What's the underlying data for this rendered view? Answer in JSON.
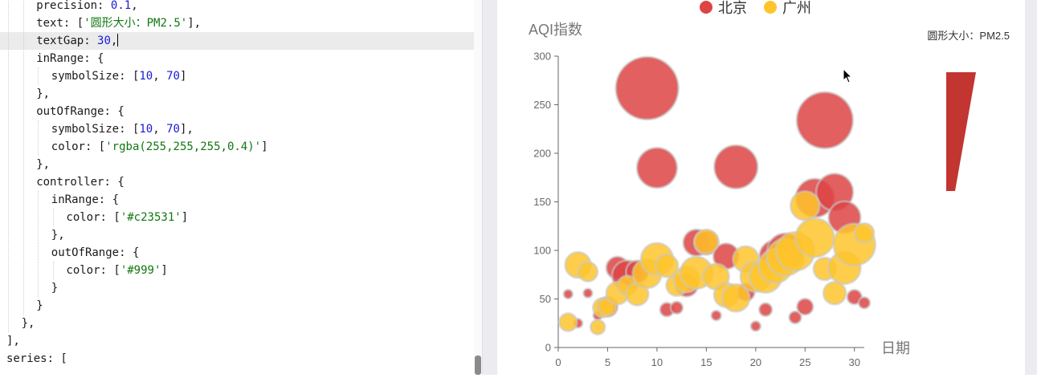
{
  "editor": {
    "lines": [
      {
        "indent": 2,
        "tokens": [
          {
            "t": "precision: "
          },
          {
            "t": "0.1",
            "c": "num"
          },
          {
            "t": ","
          }
        ]
      },
      {
        "indent": 2,
        "tokens": [
          {
            "t": "text: ["
          },
          {
            "t": "'圆形大小：PM2.5'",
            "c": "str"
          },
          {
            "t": "],"
          }
        ]
      },
      {
        "indent": 2,
        "active": true,
        "tokens": [
          {
            "t": "textGap: "
          },
          {
            "t": "30",
            "c": "num"
          },
          {
            "t": ","
          }
        ]
      },
      {
        "indent": 2,
        "tokens": [
          {
            "t": "inRange: {"
          }
        ]
      },
      {
        "indent": 3,
        "tokens": [
          {
            "t": "symbolSize: ["
          },
          {
            "t": "10",
            "c": "num"
          },
          {
            "t": ", "
          },
          {
            "t": "70",
            "c": "num"
          },
          {
            "t": "]"
          }
        ]
      },
      {
        "indent": 2,
        "tokens": [
          {
            "t": "},"
          }
        ]
      },
      {
        "indent": 2,
        "tokens": [
          {
            "t": "outOfRange: {"
          }
        ]
      },
      {
        "indent": 3,
        "tokens": [
          {
            "t": "symbolSize: ["
          },
          {
            "t": "10",
            "c": "num"
          },
          {
            "t": ", "
          },
          {
            "t": "70",
            "c": "num"
          },
          {
            "t": "],"
          }
        ]
      },
      {
        "indent": 3,
        "tokens": [
          {
            "t": "color: ["
          },
          {
            "t": "'rgba(255,255,255,0.4)'",
            "c": "str"
          },
          {
            "t": "]"
          }
        ]
      },
      {
        "indent": 2,
        "tokens": [
          {
            "t": "},"
          }
        ]
      },
      {
        "indent": 2,
        "tokens": [
          {
            "t": "controller: {"
          }
        ]
      },
      {
        "indent": 3,
        "tokens": [
          {
            "t": "inRange: {"
          }
        ]
      },
      {
        "indent": 4,
        "tokens": [
          {
            "t": "color: ["
          },
          {
            "t": "'#c23531'",
            "c": "str"
          },
          {
            "t": "]"
          }
        ]
      },
      {
        "indent": 3,
        "tokens": [
          {
            "t": "},"
          }
        ]
      },
      {
        "indent": 3,
        "tokens": [
          {
            "t": "outOfRange: {"
          }
        ]
      },
      {
        "indent": 4,
        "tokens": [
          {
            "t": "color: ["
          },
          {
            "t": "'#999'",
            "c": "str"
          },
          {
            "t": "]"
          }
        ]
      },
      {
        "indent": 3,
        "tokens": [
          {
            "t": "}"
          }
        ]
      },
      {
        "indent": 2,
        "tokens": [
          {
            "t": "}"
          }
        ]
      },
      {
        "indent": 1,
        "tokens": [
          {
            "t": "},"
          }
        ]
      },
      {
        "indent": 0,
        "tokens": [
          {
            "t": "],"
          }
        ]
      },
      {
        "indent": 0,
        "tokens": [
          {
            "t": "series: ["
          }
        ]
      }
    ]
  },
  "chart_data": {
    "type": "scatter",
    "ylabel": "AQI指数",
    "xlabel": "日期",
    "xlim": [
      0,
      31
    ],
    "ylim": [
      0,
      300
    ],
    "xticks": [
      0,
      5,
      10,
      15,
      20,
      25,
      30
    ],
    "yticks": [
      0,
      50,
      100,
      150,
      200,
      250,
      300
    ],
    "legend": {
      "position": "top",
      "items": [
        "北京",
        "广州"
      ]
    },
    "visual_map": {
      "text": "圆形大小：PM2.5",
      "in_range_symbol_size": [
        10,
        70
      ],
      "controller_color": "#c23531"
    },
    "colors": {
      "北京": "#dd4444",
      "广州": "#fec42c"
    },
    "series": [
      {
        "name": "北京",
        "points": [
          [
            1,
            55,
            11
          ],
          [
            2,
            25,
            11
          ],
          [
            3,
            56,
            11
          ],
          [
            4,
            33,
            11
          ],
          [
            5,
            42,
            25
          ],
          [
            6,
            82,
            28
          ],
          [
            7,
            74,
            38
          ],
          [
            8,
            78,
            28
          ],
          [
            9,
            267,
            78
          ],
          [
            10,
            185,
            50
          ],
          [
            11,
            39,
            17
          ],
          [
            12,
            41,
            15
          ],
          [
            13,
            64,
            28
          ],
          [
            14,
            108,
            33
          ],
          [
            15,
            108,
            30
          ],
          [
            16,
            33,
            12
          ],
          [
            17,
            94,
            32
          ],
          [
            18,
            186,
            54
          ],
          [
            19,
            57,
            22
          ],
          [
            20,
            22,
            12
          ],
          [
            21,
            39,
            16
          ],
          [
            22,
            94,
            40
          ],
          [
            23,
            99,
            45
          ],
          [
            24,
            31,
            15
          ],
          [
            25,
            42,
            20
          ],
          [
            26,
            154,
            48
          ],
          [
            27,
            234,
            70
          ],
          [
            28,
            160,
            46
          ],
          [
            29,
            134,
            40
          ],
          [
            30,
            52,
            18
          ],
          [
            31,
            46,
            14
          ]
        ]
      },
      {
        "name": "广州",
        "points": [
          [
            1,
            26,
            22
          ],
          [
            2,
            85,
            32
          ],
          [
            3,
            78,
            24
          ],
          [
            4,
            21,
            18
          ],
          [
            4.5,
            41,
            24
          ],
          [
            5,
            42,
            22
          ],
          [
            6,
            56,
            28
          ],
          [
            7,
            64,
            24
          ],
          [
            8,
            55,
            28
          ],
          [
            9,
            76,
            36
          ],
          [
            10,
            91,
            40
          ],
          [
            11,
            84,
            28
          ],
          [
            12,
            64,
            26
          ],
          [
            13,
            70,
            32
          ],
          [
            14,
            77,
            40
          ],
          [
            15,
            109,
            30
          ],
          [
            16,
            73,
            32
          ],
          [
            17,
            54,
            30
          ],
          [
            18,
            51,
            34
          ],
          [
            19,
            91,
            32
          ],
          [
            20,
            73,
            38
          ],
          [
            21,
            73,
            40
          ],
          [
            22,
            84,
            42
          ],
          [
            23,
            93,
            46
          ],
          [
            24,
            99,
            48
          ],
          [
            25,
            146,
            36
          ],
          [
            26,
            113,
            48
          ],
          [
            27,
            81,
            28
          ],
          [
            28,
            56,
            28
          ],
          [
            29,
            82,
            40
          ],
          [
            30,
            106,
            52
          ],
          [
            31,
            118,
            24
          ]
        ]
      }
    ]
  }
}
